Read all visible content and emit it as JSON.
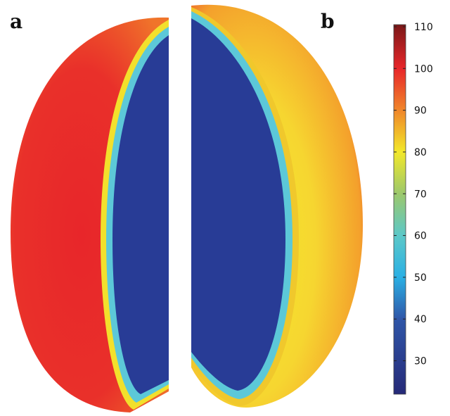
{
  "panels": [
    {
      "label": "a",
      "description_colors": {
        "outer": "#e8262a",
        "edge": "#f07a2a"
      }
    },
    {
      "label": "b",
      "description_colors": {
        "outer": "#f5c534",
        "edge": "#ea4a2a"
      }
    }
  ],
  "colorbar": {
    "min": 22,
    "max": 110.5,
    "ticks": [
      30,
      40,
      50,
      60,
      70,
      80,
      90,
      100,
      110
    ],
    "tick_labels": [
      "30",
      "40",
      "50",
      "60",
      "70",
      "80",
      "90",
      "100",
      "110"
    ],
    "stops": [
      {
        "value": 22,
        "color": "#262a78"
      },
      {
        "value": 40,
        "color": "#2f56a8"
      },
      {
        "value": 50,
        "color": "#2ab0e4"
      },
      {
        "value": 60,
        "color": "#5cc8c8"
      },
      {
        "value": 70,
        "color": "#9cc86c"
      },
      {
        "value": 80,
        "color": "#f2e82a"
      },
      {
        "value": 90,
        "color": "#f0862a"
      },
      {
        "value": 100,
        "color": "#e8262a"
      },
      {
        "value": 110.5,
        "color": "#7a1818"
      }
    ]
  }
}
